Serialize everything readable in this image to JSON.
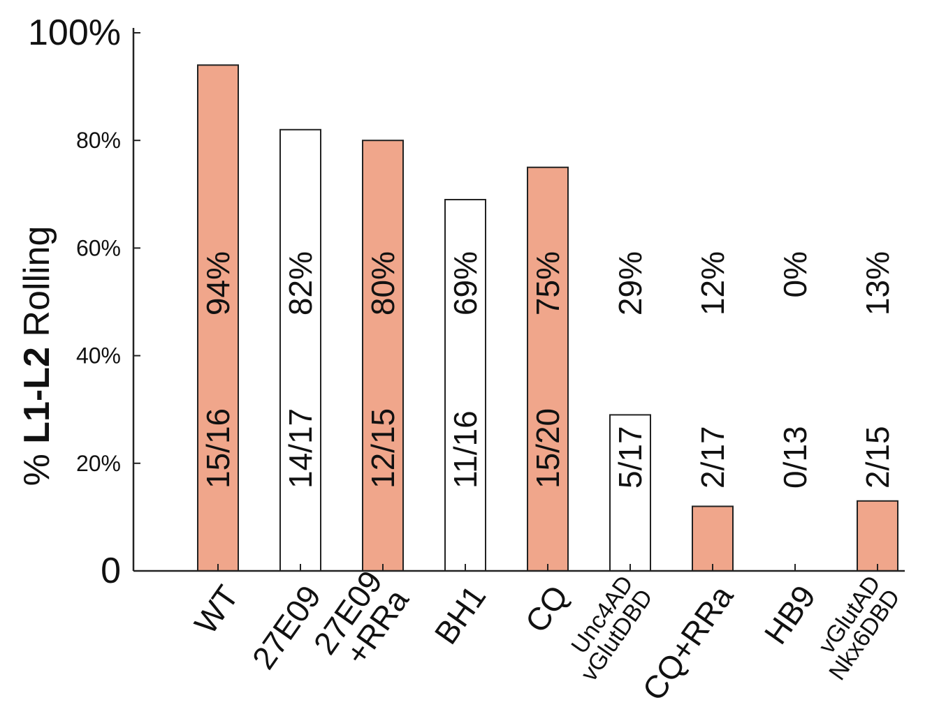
{
  "chart_data": {
    "type": "bar",
    "categories": [
      [
        "WT"
      ],
      [
        "27E09"
      ],
      [
        "27E09",
        "+RRa"
      ],
      [
        "BH1"
      ],
      [
        "CQ"
      ],
      [
        "Unc4AD",
        "vGlutDBD"
      ],
      [
        "CQ+RRa"
      ],
      [
        "HB9"
      ],
      [
        "vGlutAD",
        "Nkx6DBD"
      ]
    ],
    "values": [
      94,
      82,
      80,
      69,
      75,
      29,
      12,
      0,
      13
    ],
    "fractions": [
      "15/16",
      "14/17",
      "12/15",
      "11/16",
      "15/20",
      "5/17",
      "2/17",
      "0/13",
      "2/15"
    ],
    "percent_labels": [
      "94%",
      "82%",
      "80%",
      "69%",
      "75%",
      "29%",
      "12%",
      "0%",
      "13%"
    ],
    "filled": [
      true,
      false,
      true,
      false,
      true,
      false,
      true,
      false,
      true
    ],
    "ylabel_prefix": "% ",
    "ylabel_bold": "L1-L2",
    "ylabel_suffix": " Rolling",
    "yticks": [
      0,
      20,
      40,
      60,
      80,
      100
    ],
    "ytick_labels": [
      "0",
      "20%",
      "40%",
      "60%",
      "80%",
      "100%"
    ],
    "ylim": [
      0,
      100
    ],
    "colors": {
      "filled": "#f0a68b",
      "empty": "#ffffff",
      "stroke": "#222222"
    }
  }
}
